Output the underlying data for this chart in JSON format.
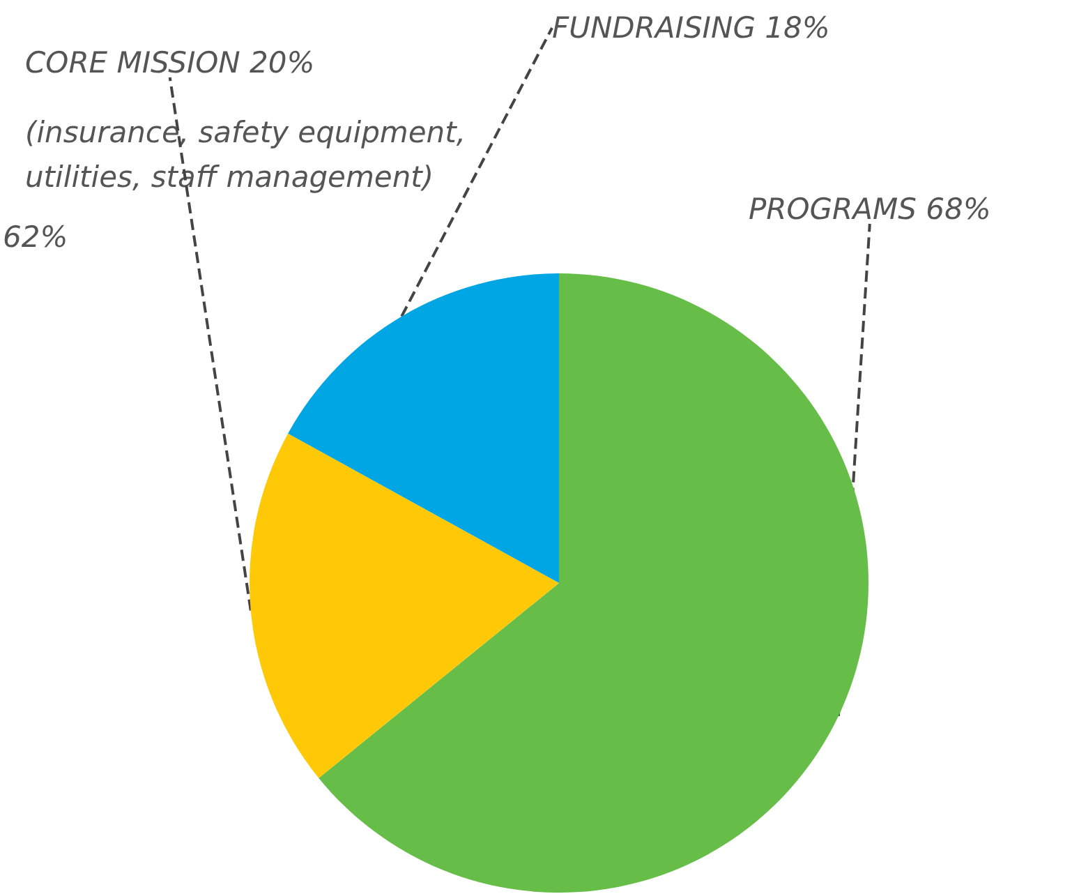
{
  "chart_data": {
    "type": "pie",
    "categories": [
      "PROGRAMS",
      "CORE MISSION",
      "FUNDRAISING"
    ],
    "values": [
      68,
      20,
      18
    ],
    "value_labels": [
      "68%",
      "20%",
      "18%"
    ],
    "colors": [
      "#66bd48",
      "#ffc907",
      "#00a6e3"
    ],
    "annotations": [
      "(insurance, safety equipment, utilities, staff management)",
      "62%"
    ],
    "legend": false
  }
}
